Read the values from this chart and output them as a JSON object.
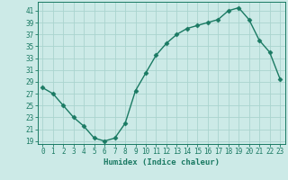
{
  "x": [
    0,
    1,
    2,
    3,
    4,
    5,
    6,
    7,
    8,
    9,
    10,
    11,
    12,
    13,
    14,
    15,
    16,
    17,
    18,
    19,
    20,
    21,
    22,
    23
  ],
  "y": [
    28,
    27,
    25,
    23,
    21.5,
    19.5,
    19,
    19.5,
    22,
    27.5,
    30.5,
    33.5,
    35.5,
    37,
    38,
    38.5,
    39,
    39.5,
    41,
    41.5,
    39.5,
    36,
    34,
    29.5
  ],
  "line_color": "#1a7a63",
  "marker": "D",
  "marker_size": 2.5,
  "bg_color": "#cceae7",
  "grid_color": "#aad4ce",
  "xlabel": "Humidex (Indice chaleur)",
  "xlim": [
    -0.5,
    23.5
  ],
  "ylim": [
    18.5,
    42.5
  ],
  "yticks": [
    19,
    21,
    23,
    25,
    27,
    29,
    31,
    33,
    35,
    37,
    39,
    41
  ],
  "xticks": [
    0,
    1,
    2,
    3,
    4,
    5,
    6,
    7,
    8,
    9,
    10,
    11,
    12,
    13,
    14,
    15,
    16,
    17,
    18,
    19,
    20,
    21,
    22,
    23
  ],
  "tick_color": "#1a7a63",
  "label_color": "#1a7a63",
  "axis_color": "#1a7a63",
  "tick_fontsize": 5.5,
  "xlabel_fontsize": 6.5
}
